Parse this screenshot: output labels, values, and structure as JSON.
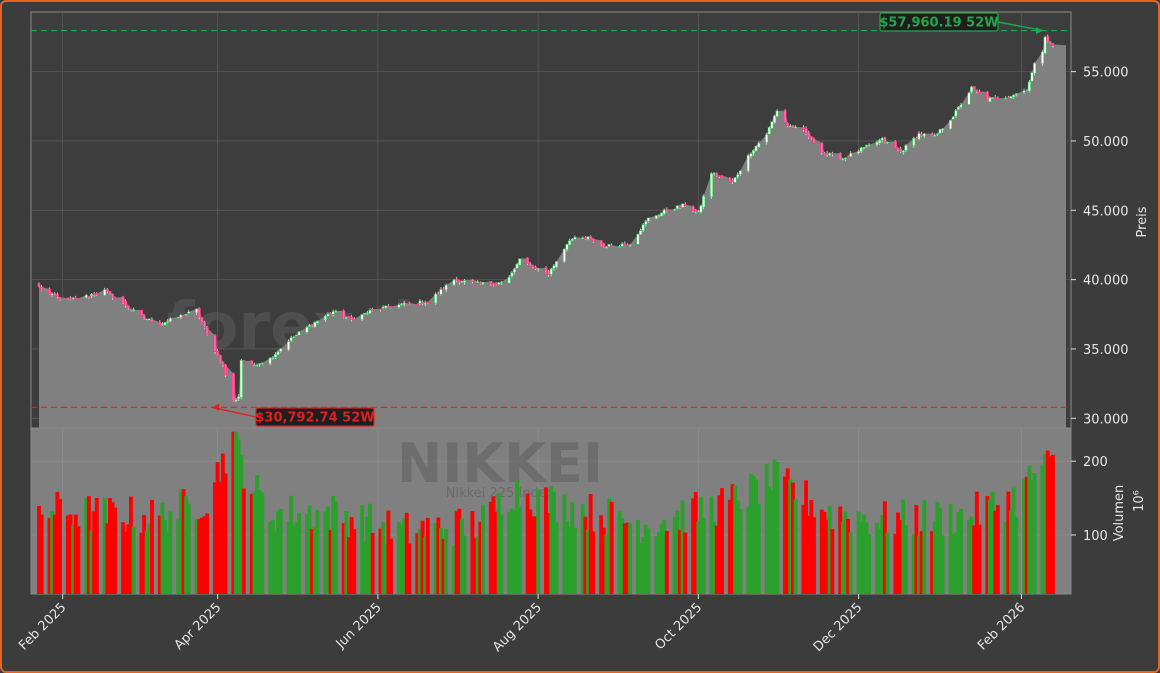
{
  "chart_data": [
    {
      "type": "candlestick",
      "panel": "price",
      "ylabel": "Preis",
      "ylim": [
        29300,
        59300
      ],
      "yticks": [
        30000,
        35000,
        40000,
        45000,
        50000,
        55000
      ],
      "ytick_labels": [
        "30.000",
        "35.000",
        "40.000",
        "45.000",
        "50.000",
        "55.000"
      ],
      "x_start": "2025-01-23",
      "x_end": "2026-02-13",
      "xticks": [
        "2025-02-01",
        "2025-04-01",
        "2025-06-01",
        "2025-08-01",
        "2025-10-01",
        "2025-12-01",
        "2026-02-01"
      ],
      "xtick_labels": [
        "Feb 2025",
        "Apr 2025",
        "Jun 2025",
        "Aug 2025",
        "Oct 2025",
        "Dec 2025",
        "Feb 2026"
      ],
      "grid": true,
      "watermark": "forexsignale.trade",
      "close_anchors": [
        [
          "2025-01-23",
          39500
        ],
        [
          "2025-01-27",
          38900
        ],
        [
          "2025-02-03",
          38500
        ],
        [
          "2025-02-10",
          38800
        ],
        [
          "2025-02-17",
          39200
        ],
        [
          "2025-02-24",
          38300
        ],
        [
          "2025-03-03",
          37300
        ],
        [
          "2025-03-10",
          36800
        ],
        [
          "2025-03-17",
          37300
        ],
        [
          "2025-03-24",
          37800
        ],
        [
          "2025-03-28",
          36000
        ],
        [
          "2025-04-03",
          33800
        ],
        [
          "2025-04-07",
          31200
        ],
        [
          "2025-04-09",
          31600
        ],
        [
          "2025-04-10",
          34200
        ],
        [
          "2025-04-14",
          33800
        ],
        [
          "2025-04-21",
          34300
        ],
        [
          "2025-04-28",
          35600
        ],
        [
          "2025-05-07",
          36800
        ],
        [
          "2025-05-15",
          37700
        ],
        [
          "2025-05-22",
          37100
        ],
        [
          "2025-05-30",
          37800
        ],
        [
          "2025-06-10",
          38200
        ],
        [
          "2025-06-20",
          38400
        ],
        [
          "2025-06-30",
          40000
        ],
        [
          "2025-07-10",
          39700
        ],
        [
          "2025-07-20",
          39800
        ],
        [
          "2025-07-25",
          41400
        ],
        [
          "2025-08-05",
          40400
        ],
        [
          "2025-08-13",
          42900
        ],
        [
          "2025-08-20",
          43000
        ],
        [
          "2025-08-26",
          42400
        ],
        [
          "2025-09-05",
          42600
        ],
        [
          "2025-09-12",
          44400
        ],
        [
          "2025-09-19",
          45000
        ],
        [
          "2025-09-26",
          45400
        ],
        [
          "2025-10-01",
          44800
        ],
        [
          "2025-10-06",
          47700
        ],
        [
          "2025-10-14",
          47000
        ],
        [
          "2025-10-21",
          49200
        ],
        [
          "2025-10-27",
          50500
        ],
        [
          "2025-10-31",
          52200
        ],
        [
          "2025-11-04",
          51100
        ],
        [
          "2025-11-10",
          50700
        ],
        [
          "2025-11-18",
          49100
        ],
        [
          "2025-11-25",
          48700
        ],
        [
          "2025-12-01",
          49300
        ],
        [
          "2025-12-10",
          50100
        ],
        [
          "2025-12-17",
          49200
        ],
        [
          "2025-12-24",
          50500
        ],
        [
          "2025-12-30",
          50300
        ],
        [
          "2026-01-06",
          51800
        ],
        [
          "2026-01-13",
          53800
        ],
        [
          "2026-01-19",
          53000
        ],
        [
          "2026-01-27",
          53200
        ],
        [
          "2026-02-03",
          53700
        ],
        [
          "2026-02-06",
          55500
        ],
        [
          "2026-02-09",
          56500
        ],
        [
          "2026-02-10",
          57600
        ],
        [
          "2026-02-12",
          56900
        ]
      ],
      "annotations": [
        {
          "label": "$57,960.19 52W",
          "value": 57960.19,
          "kind": "high",
          "color": "#22a64a"
        },
        {
          "label": "$30,792.74 52W",
          "value": 30792.74,
          "kind": "low",
          "color": "#e02020"
        }
      ],
      "up_color": "#2ca02c",
      "down_color": "#ff0000"
    },
    {
      "type": "bar",
      "panel": "volume",
      "ylabel": "Volumen",
      "yunit_label": "10⁶",
      "ylim": [
        20,
        245
      ],
      "yticks": [
        100,
        200
      ],
      "ytick_labels": [
        "100",
        "200"
      ],
      "watermark": "NIKKEI",
      "watermark_sub": "Nikkei 225 Index",
      "volume_anchors": [
        [
          "2025-01-23",
          135
        ],
        [
          "2025-02-15",
          128
        ],
        [
          "2025-03-10",
          125
        ],
        [
          "2025-03-28",
          150
        ],
        [
          "2025-04-07",
          235
        ],
        [
          "2025-04-11",
          190
        ],
        [
          "2025-04-20",
          130
        ],
        [
          "2025-05-15",
          130
        ],
        [
          "2025-06-10",
          105
        ],
        [
          "2025-07-10",
          115
        ],
        [
          "2025-07-22",
          160
        ],
        [
          "2025-08-10",
          140
        ],
        [
          "2025-09-10",
          115
        ],
        [
          "2025-10-10",
          140
        ],
        [
          "2025-10-30",
          175
        ],
        [
          "2025-11-20",
          130
        ],
        [
          "2025-12-10",
          120
        ],
        [
          "2026-01-10",
          125
        ],
        [
          "2026-01-30",
          150
        ],
        [
          "2026-02-06",
          185
        ],
        [
          "2026-02-12",
          195
        ]
      ]
    }
  ]
}
